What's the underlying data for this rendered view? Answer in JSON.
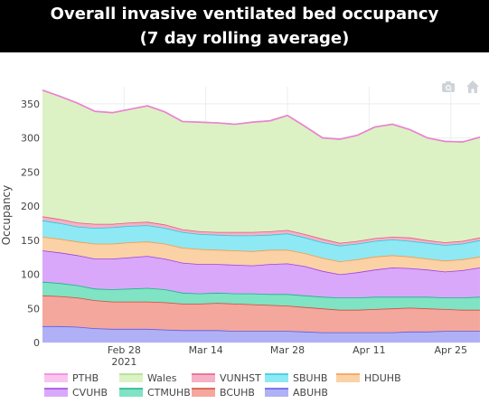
{
  "header": {
    "title_line1": "Overall invasive ventilated bed occupancy",
    "title_line2": "(7 day rolling average)"
  },
  "modebar": [
    {
      "name": "camera-icon"
    },
    {
      "name": "home-icon"
    }
  ],
  "chart_data": {
    "type": "area",
    "title": "Overall invasive ventilated bed occupancy (7 day rolling average)",
    "xlabel": "",
    "ylabel": "Occupancy",
    "ylim": [
      0,
      375
    ],
    "xlim": [
      "2021-02-14",
      "2021-04-30"
    ],
    "x_ticks": [
      {
        "date": "2021-02-28",
        "label": "Feb 28",
        "sublabel": "2021"
      },
      {
        "date": "2021-03-14",
        "label": "Mar 14",
        "sublabel": ""
      },
      {
        "date": "2021-03-28",
        "label": "Mar 28",
        "sublabel": ""
      },
      {
        "date": "2021-04-11",
        "label": "Apr 11",
        "sublabel": ""
      },
      {
        "date": "2021-04-25",
        "label": "Apr 25",
        "sublabel": ""
      }
    ],
    "y_ticks": [
      0,
      50,
      100,
      150,
      200,
      250,
      300,
      350
    ],
    "grid": true,
    "legend_position": "bottom",
    "x": [
      "2021-02-14",
      "2021-02-17",
      "2021-02-20",
      "2021-02-23",
      "2021-02-26",
      "2021-03-01",
      "2021-03-04",
      "2021-03-07",
      "2021-03-10",
      "2021-03-13",
      "2021-03-16",
      "2021-03-19",
      "2021-03-22",
      "2021-03-25",
      "2021-03-28",
      "2021-03-31",
      "2021-04-03",
      "2021-04-06",
      "2021-04-09",
      "2021-04-12",
      "2021-04-15",
      "2021-04-18",
      "2021-04-21",
      "2021-04-24",
      "2021-04-27",
      "2021-04-30"
    ],
    "series": [
      {
        "name": "ABUHB",
        "line_color": "#5a5ae6",
        "fill_color": "#b0b0f7",
        "values": [
          24,
          24,
          23,
          21,
          20,
          20,
          20,
          19,
          18,
          18,
          18,
          17,
          17,
          17,
          17,
          16,
          15,
          15,
          15,
          15,
          15,
          16,
          16,
          17,
          17,
          17
        ]
      },
      {
        "name": "BCUHB",
        "line_color": "#d14b3b",
        "fill_color": "#f4a79d",
        "values": [
          45,
          44,
          43,
          41,
          40,
          40,
          40,
          40,
          39,
          39,
          40,
          40,
          39,
          38,
          37,
          36,
          35,
          33,
          33,
          34,
          35,
          35,
          34,
          32,
          31,
          31
        ]
      },
      {
        "name": "CTMUHB",
        "line_color": "#1eb08c",
        "fill_color": "#7fe3c4",
        "values": [
          20,
          19,
          18,
          17,
          18,
          19,
          20,
          19,
          16,
          15,
          15,
          15,
          16,
          16,
          17,
          17,
          17,
          18,
          18,
          18,
          17,
          16,
          17,
          17,
          18,
          19
        ]
      },
      {
        "name": "CVUHB",
        "line_color": "#9b42e6",
        "fill_color": "#d9a8fa",
        "values": [
          46,
          45,
          44,
          44,
          45,
          46,
          47,
          45,
          44,
          43,
          42,
          42,
          41,
          44,
          45,
          43,
          38,
          34,
          37,
          40,
          43,
          42,
          40,
          38,
          40,
          43
        ]
      },
      {
        "name": "HDUHB",
        "line_color": "#f29a4a",
        "fill_color": "#fbd1a6",
        "values": [
          20,
          20,
          20,
          22,
          22,
          22,
          21,
          22,
          22,
          22,
          21,
          21,
          21,
          21,
          20,
          19,
          19,
          19,
          19,
          19,
          18,
          17,
          16,
          16,
          16,
          16
        ]
      },
      {
        "name": "SBUHB",
        "line_color": "#27c9dd",
        "fill_color": "#8ee9f4",
        "values": [
          24,
          23,
          22,
          23,
          24,
          24,
          24,
          23,
          23,
          22,
          22,
          22,
          23,
          22,
          24,
          23,
          23,
          23,
          23,
          23,
          23,
          23,
          23,
          23,
          23,
          24
        ]
      },
      {
        "name": "VUNHST",
        "line_color": "#e35b85",
        "fill_color": "#f6b1c6",
        "values": [
          6,
          6,
          6,
          6,
          5,
          5,
          5,
          5,
          4,
          4,
          4,
          5,
          5,
          5,
          5,
          5,
          5,
          4,
          4,
          4,
          4,
          5,
          4,
          4,
          4,
          4
        ]
      },
      {
        "name": "Wales",
        "line_color": "#a8dc8c",
        "fill_color": "#dcf2c4",
        "values": [
          185,
          180,
          175,
          165,
          163,
          166,
          170,
          165,
          158,
          160,
          160,
          158,
          161,
          162,
          168,
          158,
          148,
          152,
          155,
          163,
          165,
          158,
          150,
          148,
          145,
          147
        ]
      },
      {
        "name": "PTHB",
        "line_color": "#f07ed6",
        "fill_color": "#f9c5ee",
        "values": [
          0,
          0,
          0,
          0,
          0,
          0,
          0,
          0,
          0,
          0,
          0,
          0,
          0,
          0,
          0,
          0,
          0,
          0,
          0,
          0,
          0,
          0,
          0,
          0,
          0,
          0
        ]
      }
    ],
    "legend_order": [
      "PTHB",
      "Wales",
      "VUNHST",
      "SBUHB",
      "HDUHB",
      "CVUHB",
      "CTMUHB",
      "BCUHB",
      "ABUHB"
    ]
  }
}
